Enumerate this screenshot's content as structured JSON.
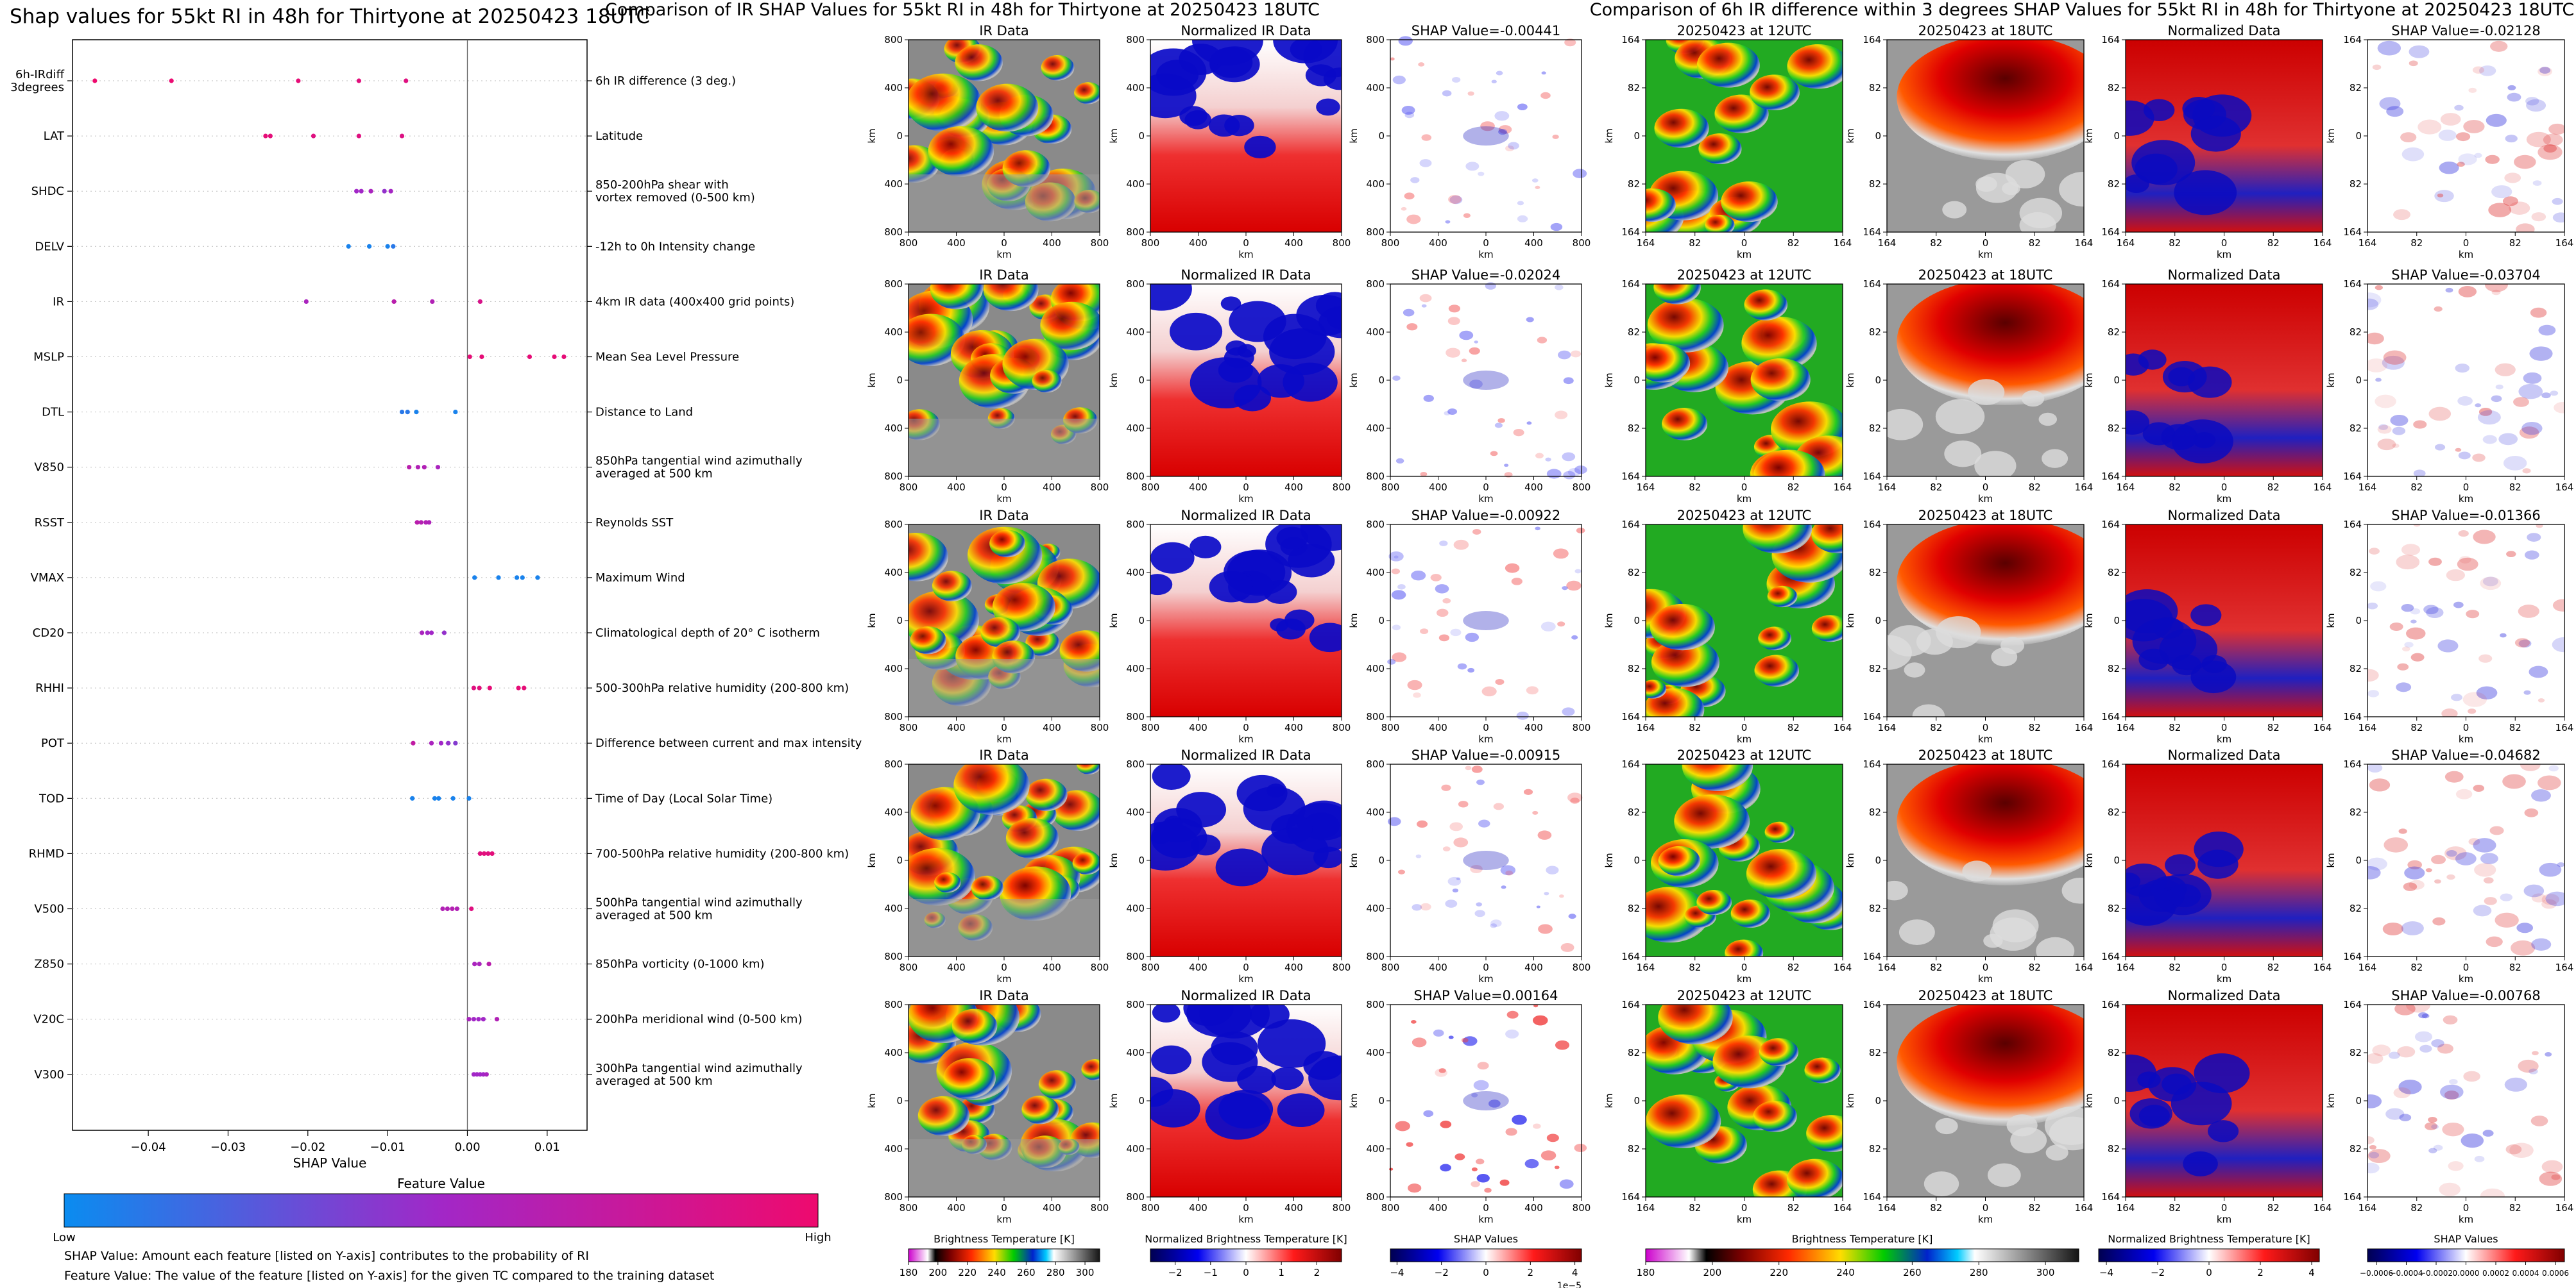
{
  "colors": {
    "low": "#0a8cf0",
    "mid": "#a227c7",
    "high": "#ee0a6e"
  },
  "left_panel": {
    "title": "Shap values for 55kt RI in 48h for Thirtyone at 20250423 18UTC",
    "xlabel": "SHAP Value",
    "colorbar_title": "Feature Value",
    "colorbar_low": "Low",
    "colorbar_high": "High",
    "note1": "SHAP Value: Amount each feature [listed on Y-axis] contributes to the probability of RI",
    "note2": "Feature Value: The value of the feature [listed on Y-axis] for the given TC compared to the training dataset"
  },
  "chart_data": [
    {
      "type": "scatter",
      "title": "Shap values for 55kt RI in 48h for Thirtyone at 20250423 18UTC",
      "xlabel": "SHAP Value",
      "xlim": [
        -0.0495,
        0.015
      ],
      "xticks": [
        -0.04,
        -0.03,
        -0.02,
        -0.01,
        0.0,
        0.01
      ],
      "xtick_labels": [
        "−0.04",
        "−0.03",
        "−0.02",
        "−0.01",
        "0.00",
        "0.01"
      ],
      "features": [
        {
          "code": "6h-IRdiff\n3degrees",
          "desc": "6h IR difference (3 deg.)",
          "points": [
            [
              -0.0467,
              1.0
            ],
            [
              -0.0371,
              0.98
            ],
            [
              -0.0212,
              0.95
            ],
            [
              -0.0136,
              0.92
            ],
            [
              -0.0077,
              0.9
            ]
          ]
        },
        {
          "code": "LAT",
          "desc": "Latitude",
          "points": [
            [
              -0.0253,
              0.95
            ],
            [
              -0.0247,
              0.93
            ],
            [
              -0.0193,
              0.9
            ],
            [
              -0.0136,
              0.9
            ],
            [
              -0.0082,
              0.88
            ]
          ]
        },
        {
          "code": "SHDC",
          "desc": "850-200hPa shear with\nvortex removed (0-500 km)",
          "points": [
            [
              -0.0139,
              0.5
            ],
            [
              -0.0133,
              0.5
            ],
            [
              -0.0121,
              0.55
            ],
            [
              -0.0104,
              0.45
            ],
            [
              -0.0096,
              0.52
            ]
          ]
        },
        {
          "code": "DELV",
          "desc": "-12h to 0h Intensity change",
          "points": [
            [
              -0.0149,
              0.05
            ],
            [
              -0.0123,
              0.05
            ],
            [
              -0.01,
              0.05
            ],
            [
              -0.0093,
              0.1
            ]
          ]
        },
        {
          "code": "IR",
          "desc": "4km IR data (400x400 grid points)",
          "points": [
            [
              -0.0202,
              0.55
            ],
            [
              -0.0092,
              0.65
            ],
            [
              -0.0044,
              0.6
            ],
            [
              0.0016,
              0.85
            ]
          ]
        },
        {
          "code": "MSLP",
          "desc": "Mean Sea Level Pressure",
          "points": [
            [
              0.0003,
              0.95
            ],
            [
              0.0018,
              0.95
            ],
            [
              0.0078,
              0.95
            ],
            [
              0.0109,
              0.95
            ],
            [
              0.0121,
              0.95
            ]
          ]
        },
        {
          "code": "DTL",
          "desc": "Distance to Land",
          "points": [
            [
              -0.0082,
              0.1
            ],
            [
              -0.0075,
              0.1
            ],
            [
              -0.0064,
              0.05
            ],
            [
              -0.0015,
              0.05
            ]
          ]
        },
        {
          "code": "V850",
          "desc": "850hPa tangential wind azimuthally\naveraged at 500 km",
          "points": [
            [
              -0.0073,
              0.65
            ],
            [
              -0.0062,
              0.6
            ],
            [
              -0.0054,
              0.6
            ],
            [
              -0.0037,
              0.55
            ]
          ]
        },
        {
          "code": "RSST",
          "desc": "Reynolds SST",
          "points": [
            [
              -0.0063,
              0.65
            ],
            [
              -0.0058,
              0.62
            ],
            [
              -0.0052,
              0.6
            ],
            [
              -0.0048,
              0.58
            ]
          ]
        },
        {
          "code": "VMAX",
          "desc": "Maximum Wind",
          "points": [
            [
              0.0009,
              0.05
            ],
            [
              0.0039,
              0.05
            ],
            [
              0.0062,
              0.05
            ],
            [
              0.0069,
              0.05
            ],
            [
              0.0088,
              0.05
            ]
          ]
        },
        {
          "code": "CD20",
          "desc": "Climatological depth of 20° C isotherm",
          "points": [
            [
              -0.0057,
              0.55
            ],
            [
              -0.005,
              0.5
            ],
            [
              -0.0045,
              0.5
            ],
            [
              -0.0029,
              0.45
            ]
          ]
        },
        {
          "code": "RHHI",
          "desc": "500-300hPa relative humidity (200-800 km)",
          "points": [
            [
              0.0008,
              0.9
            ],
            [
              0.0015,
              0.92
            ],
            [
              0.0028,
              0.95
            ],
            [
              0.0064,
              0.95
            ],
            [
              0.0071,
              0.95
            ]
          ]
        },
        {
          "code": "POT",
          "desc": "Difference between current and max intensity",
          "points": [
            [
              -0.0068,
              0.7
            ],
            [
              -0.0045,
              0.55
            ],
            [
              -0.0033,
              0.5
            ],
            [
              -0.0024,
              0.45
            ],
            [
              -0.0015,
              0.4
            ]
          ]
        },
        {
          "code": "TOD",
          "desc": "Time of Day (Local Solar Time)",
          "points": [
            [
              -0.0069,
              0.05
            ],
            [
              -0.0041,
              0.05
            ],
            [
              -0.0036,
              0.05
            ],
            [
              -0.0018,
              0.05
            ],
            [
              0.0002,
              0.05
            ]
          ]
        },
        {
          "code": "RHMD",
          "desc": "700-500hPa relative humidity (200-800 km)",
          "points": [
            [
              0.0016,
              0.9
            ],
            [
              0.0021,
              0.92
            ],
            [
              0.0026,
              0.9
            ],
            [
              0.0031,
              0.93
            ]
          ]
        },
        {
          "code": "V500",
          "desc": "500hPa tangential wind azimuthally\naveraged at 500 km",
          "points": [
            [
              -0.0031,
              0.6
            ],
            [
              -0.0025,
              0.6
            ],
            [
              -0.0019,
              0.62
            ],
            [
              -0.0013,
              0.6
            ],
            [
              0.0005,
              0.9
            ]
          ]
        },
        {
          "code": "Z850",
          "desc": "850hPa vorticity (0-1000 km)",
          "points": [
            [
              0.0009,
              0.55
            ],
            [
              0.0015,
              0.55
            ],
            [
              0.0027,
              0.65
            ]
          ]
        },
        {
          "code": "V20C",
          "desc": "200hPa meridional wind (0-500 km)",
          "points": [
            [
              0.0002,
              0.55
            ],
            [
              0.0008,
              0.5
            ],
            [
              0.0014,
              0.5
            ],
            [
              0.002,
              0.5
            ],
            [
              0.0037,
              0.6
            ]
          ]
        },
        {
          "code": "V300",
          "desc": "300hPa tangential wind azimuthally\naveraged at 500 km",
          "points": [
            [
              0.0008,
              0.5
            ],
            [
              0.0012,
              0.5
            ],
            [
              0.0016,
              0.5
            ],
            [
              0.002,
              0.5
            ],
            [
              0.0024,
              0.55
            ]
          ]
        }
      ]
    },
    {
      "type": "heatmap",
      "title": "Comparison of IR SHAP Values for 55kt RI in 48h for Thirtyone at 20250423 18UTC",
      "columns": [
        "IR Data",
        "Normalized IR Data",
        "SHAP Value"
      ],
      "shap_values": [
        "-0.00441",
        "-0.02024",
        "-0.00922",
        "-0.00915",
        "0.00164"
      ],
      "axis_label": "km",
      "xticks": [
        "800",
        "400",
        "0",
        "400",
        "800"
      ],
      "yticks": [
        "800",
        "400",
        "0",
        "400",
        "800"
      ],
      "colorbars": [
        {
          "label": "Brightness Temperature [K]",
          "ticks": [
            "180",
            "200",
            "220",
            "240",
            "260",
            "280",
            "300"
          ],
          "range": [
            180,
            310
          ]
        },
        {
          "label": "Normalized Brightness Temperature [K]",
          "ticks": [
            "−2",
            "−1",
            "0",
            "1",
            "2"
          ],
          "range": [
            -2.7,
            2.7
          ]
        },
        {
          "label": "SHAP Values",
          "ticks": [
            "−4",
            "−2",
            "0",
            "2",
            "4"
          ],
          "range": [
            -4.3,
            4.3
          ],
          "offset": "1e−5"
        }
      ]
    },
    {
      "type": "heatmap",
      "title": "Comparison of 6h IR difference within 3 degrees SHAP Values for 55kt RI in 48h for Thirtyone at 20250423 18UTC",
      "columns": [
        "20250423 at 12UTC",
        "20250423 at 18UTC",
        "Normalized Data",
        "SHAP Value"
      ],
      "shap_values": [
        "-0.02128",
        "-0.03704",
        "-0.01366",
        "-0.04682",
        "-0.00768"
      ],
      "axis_label": "km",
      "xticks": [
        "164",
        "82",
        "0",
        "82",
        "164"
      ],
      "yticks": [
        "164",
        "82",
        "0",
        "82",
        "164"
      ],
      "colorbars": [
        {
          "label": "Brightness Temperature [K]",
          "ticks": [
            "180",
            "200",
            "220",
            "240",
            "260",
            "280",
            "300"
          ],
          "range": [
            180,
            310
          ]
        },
        {
          "label": "Normalized Brightness Temperature [K]",
          "ticks": [
            "−4",
            "−2",
            "0",
            "2",
            "4"
          ],
          "range": [
            -4.3,
            4.3
          ]
        },
        {
          "label": "SHAP Values",
          "ticks": [
            "−0.0006",
            "−0.0004",
            "−0.0002",
            "0.0000",
            "0.0002",
            "0.0004",
            "0.0006"
          ],
          "range": [
            -0.00066,
            0.00066
          ]
        }
      ]
    }
  ]
}
